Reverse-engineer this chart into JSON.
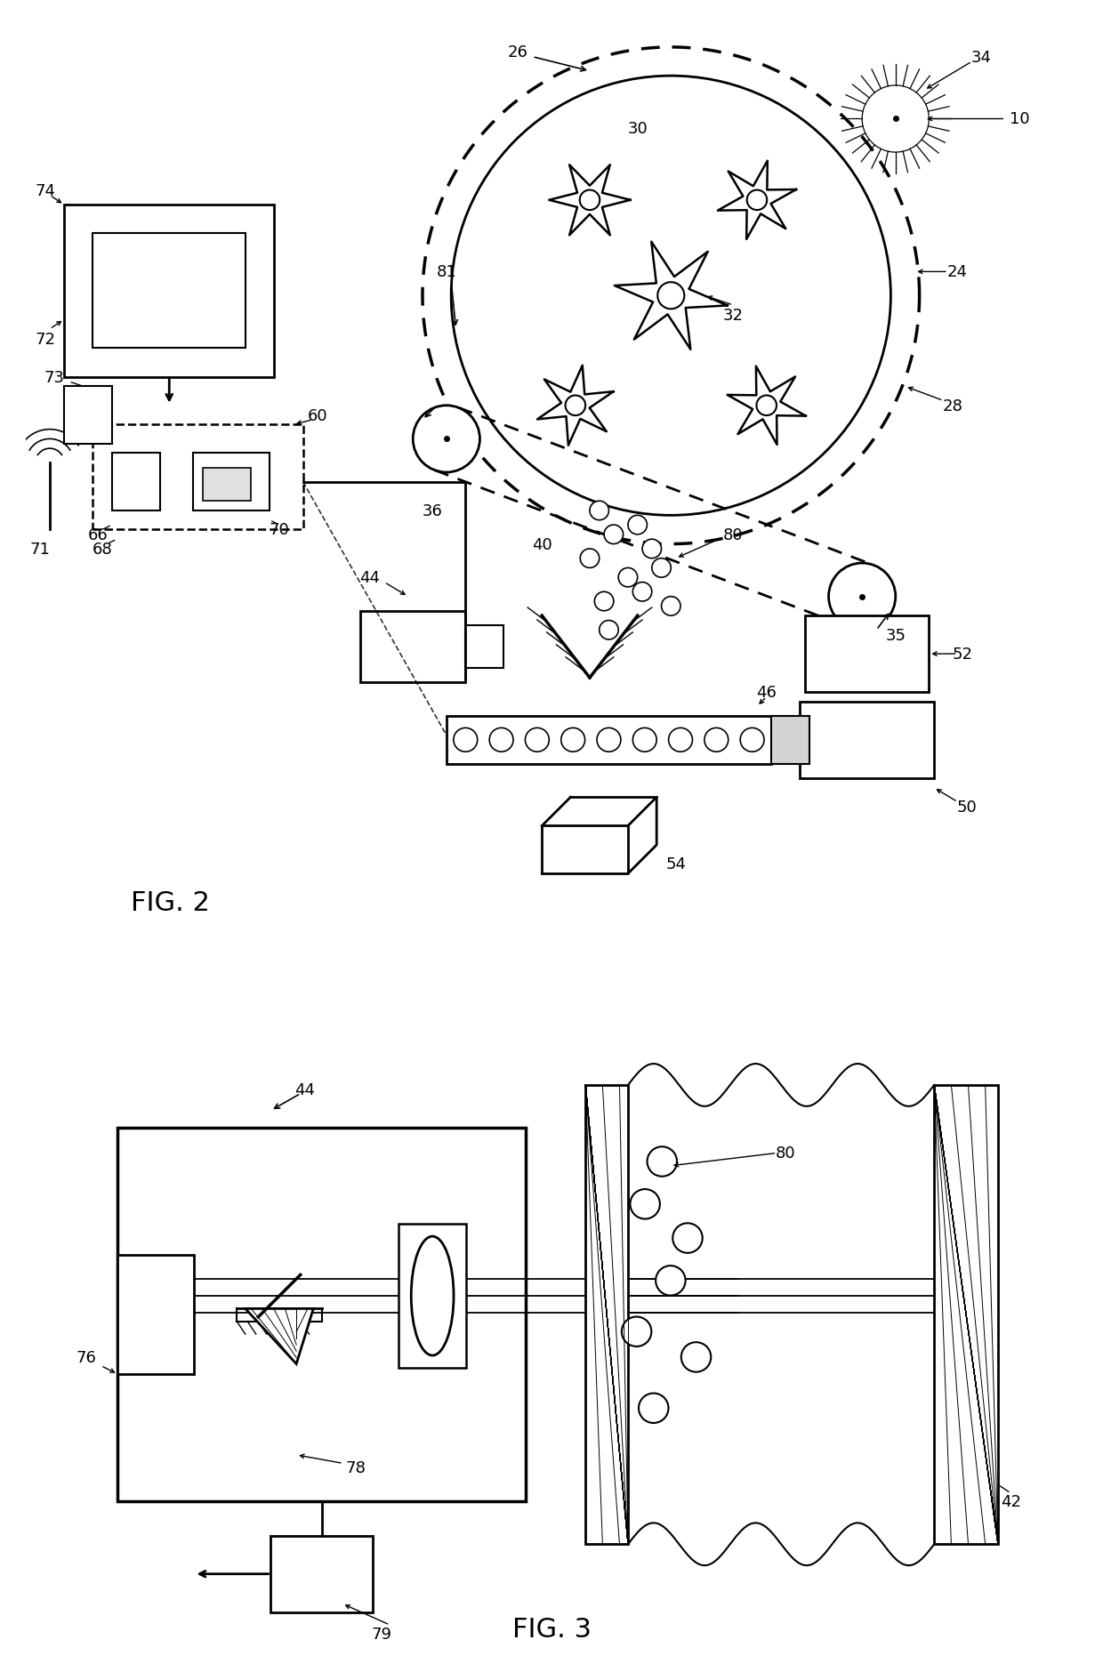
{
  "bg_color": "#ffffff",
  "line_color": "#000000",
  "fig2_label": "FIG. 2",
  "fig3_label": "FIG. 3",
  "lw_main": 1.8,
  "lw_thin": 1.2,
  "lw_thick": 2.2,
  "fontsize_label": 13,
  "fontsize_fig": 20
}
